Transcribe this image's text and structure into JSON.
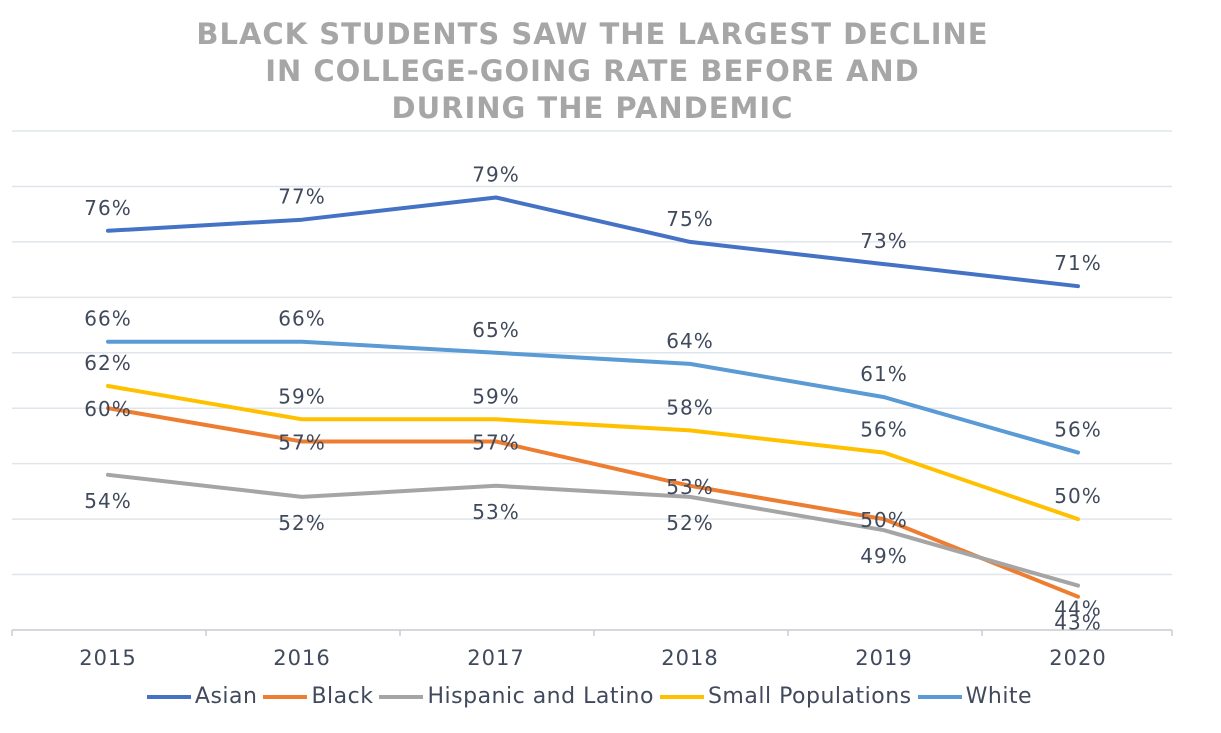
{
  "chart_data": {
    "type": "line",
    "title_lines": [
      "BLACK STUDENTS SAW THE LARGEST DECLINE",
      "IN COLLEGE-GOING RATE BEFORE AND",
      "DURING THE PANDEMIC"
    ],
    "categories": [
      "2015",
      "2016",
      "2017",
      "2018",
      "2019",
      "2020"
    ],
    "ylim": [
      40,
      85
    ],
    "grid": true,
    "legend_position": "bottom",
    "series": [
      {
        "name": "Asian",
        "color": "#4472c4",
        "values": [
          76,
          77,
          79,
          75,
          73,
          71
        ],
        "labels": [
          "76%",
          "77%",
          "79%",
          "75%",
          "73%",
          "71%"
        ]
      },
      {
        "name": "Black",
        "color": "#ed7d31",
        "values": [
          60,
          57,
          57,
          53,
          50,
          43
        ],
        "labels": [
          "60%",
          "57%",
          "57%",
          "53%",
          "50%",
          "43%"
        ]
      },
      {
        "name": "Hispanic and Latino",
        "color": "#a5a5a5",
        "values": [
          54,
          52,
          53,
          52,
          49,
          44
        ],
        "labels": [
          "54%",
          "52%",
          "53%",
          "52%",
          "49%",
          "44%"
        ]
      },
      {
        "name": "Small Populations",
        "color": "#ffc000",
        "values": [
          62,
          59,
          59,
          58,
          56,
          50
        ],
        "labels": [
          "62%",
          "59%",
          "59%",
          "58%",
          "56%",
          "50%"
        ]
      },
      {
        "name": "White",
        "color": "#5b9bd5",
        "values": [
          66,
          66,
          65,
          64,
          61,
          56
        ],
        "labels": [
          "66%",
          "66%",
          "65%",
          "64%",
          "61%",
          "56%"
        ]
      }
    ]
  }
}
